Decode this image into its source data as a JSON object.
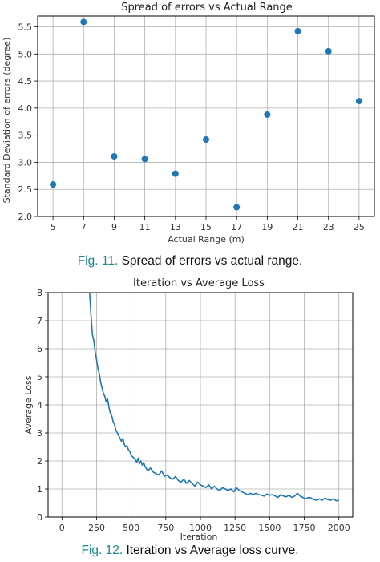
{
  "figures": [
    {
      "caption_number": "Fig. 11.",
      "caption_text": "Spread of errors vs actual range."
    },
    {
      "caption_number": "Fig. 12.",
      "caption_text": "Iteration vs Average loss curve."
    }
  ],
  "chart_data": [
    {
      "type": "scatter",
      "title": "Spread of errors vs Actual Range",
      "xlabel": "Actual Range (m)",
      "ylabel": "Standard Deviation of errors (degree)",
      "xlim": [
        4.0,
        26.0
      ],
      "ylim": [
        2.0,
        5.7
      ],
      "xticks": [
        5,
        7,
        9,
        11,
        13,
        15,
        17,
        19,
        21,
        23,
        25
      ],
      "yticks": [
        2.0,
        2.5,
        3.0,
        3.5,
        4.0,
        4.5,
        5.0,
        5.5
      ],
      "grid": true,
      "color": "#1f77b4",
      "x": [
        5,
        7,
        9,
        11,
        13,
        15,
        17,
        19,
        21,
        23,
        25
      ],
      "y": [
        2.59,
        5.59,
        3.11,
        3.06,
        2.79,
        3.42,
        2.17,
        3.88,
        5.42,
        5.05,
        4.13
      ]
    },
    {
      "type": "line",
      "title": "Iteration vs Average Loss",
      "xlabel": "Iteration",
      "ylabel": "Average Loss",
      "xlim": [
        -100,
        2100
      ],
      "ylim": [
        0,
        8
      ],
      "xticks": [
        0,
        250,
        500,
        750,
        1000,
        1250,
        1500,
        1750,
        2000
      ],
      "yticks": [
        0,
        1,
        2,
        3,
        4,
        5,
        6,
        7,
        8
      ],
      "grid": true,
      "color": "#1f77b4",
      "x": [
        200,
        210,
        220,
        230,
        240,
        250,
        260,
        270,
        280,
        290,
        300,
        310,
        320,
        330,
        340,
        350,
        360,
        370,
        380,
        390,
        400,
        410,
        420,
        430,
        440,
        450,
        460,
        470,
        480,
        490,
        500,
        510,
        520,
        530,
        540,
        550,
        560,
        570,
        580,
        590,
        600,
        620,
        640,
        660,
        680,
        700,
        720,
        740,
        760,
        780,
        800,
        820,
        840,
        860,
        880,
        900,
        920,
        940,
        960,
        980,
        1000,
        1020,
        1040,
        1060,
        1080,
        1100,
        1120,
        1140,
        1160,
        1180,
        1200,
        1220,
        1240,
        1260,
        1280,
        1300,
        1320,
        1340,
        1360,
        1380,
        1400,
        1420,
        1440,
        1460,
        1480,
        1500,
        1520,
        1540,
        1560,
        1580,
        1600,
        1620,
        1640,
        1660,
        1680,
        1700,
        1720,
        1740,
        1760,
        1780,
        1800,
        1820,
        1840,
        1860,
        1880,
        1900,
        1920,
        1940,
        1960,
        1980,
        2000
      ],
      "y": [
        8.0,
        7.2,
        6.5,
        6.3,
        5.9,
        5.6,
        5.3,
        5.1,
        4.8,
        4.6,
        4.4,
        4.3,
        4.1,
        4.2,
        3.9,
        3.7,
        3.6,
        3.4,
        3.3,
        3.1,
        3.0,
        2.9,
        2.8,
        2.7,
        2.8,
        2.6,
        2.5,
        2.55,
        2.4,
        2.35,
        2.2,
        2.15,
        2.1,
        2.05,
        1.95,
        2.1,
        1.9,
        2.0,
        1.85,
        1.95,
        1.8,
        1.65,
        1.75,
        1.6,
        1.55,
        1.5,
        1.65,
        1.45,
        1.5,
        1.4,
        1.35,
        1.45,
        1.3,
        1.25,
        1.35,
        1.2,
        1.3,
        1.2,
        1.1,
        1.25,
        1.15,
        1.1,
        1.05,
        1.15,
        1.0,
        1.1,
        1.0,
        0.95,
        1.05,
        1.0,
        0.95,
        1.0,
        0.9,
        1.05,
        0.95,
        0.9,
        0.85,
        0.8,
        0.85,
        0.8,
        0.85,
        0.8,
        0.78,
        0.75,
        0.82,
        0.78,
        0.8,
        0.75,
        0.7,
        0.8,
        0.75,
        0.72,
        0.78,
        0.7,
        0.75,
        0.85,
        0.75,
        0.7,
        0.65,
        0.7,
        0.68,
        0.62,
        0.6,
        0.65,
        0.6,
        0.68,
        0.62,
        0.6,
        0.65,
        0.58,
        0.6
      ]
    }
  ]
}
